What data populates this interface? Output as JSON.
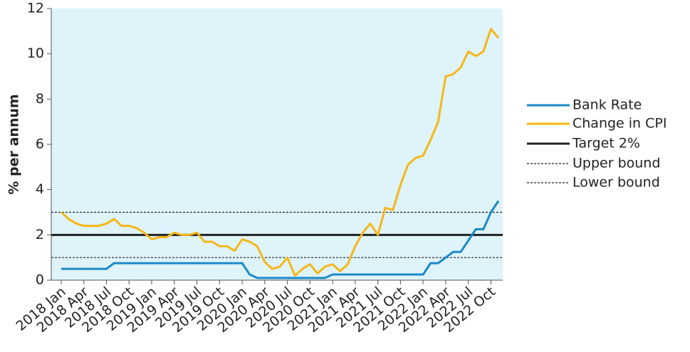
{
  "chart_data": {
    "type": "line",
    "y_label": "% per annum",
    "categories": [
      "2018 Jan",
      null,
      null,
      "2018 Apr",
      null,
      null,
      "2018 Jul",
      null,
      null,
      "2018 Oct",
      null,
      null,
      "2019 Jan",
      null,
      null,
      "2019 Apr",
      null,
      null,
      "2019 Jul",
      null,
      null,
      "2019 Oct",
      null,
      null,
      "2020 Jan",
      null,
      null,
      "2020 Apr",
      null,
      null,
      "2020 Jul",
      null,
      null,
      "2020 Oct",
      null,
      null,
      "2021 Jan",
      null,
      null,
      "2021 Apr",
      null,
      null,
      "2021 Jul",
      null,
      null,
      "2021 Oct",
      null,
      null,
      "2022 Jan",
      null,
      null,
      "2022 Apr",
      null,
      null,
      "2022 Jul",
      null,
      null,
      "2022 Oct",
      null
    ],
    "series": [
      {
        "name": "Bank Rate",
        "color": "#1a8ac6",
        "values": [
          0.5,
          0.5,
          0.5,
          0.5,
          0.5,
          0.5,
          0.5,
          0.75,
          0.75,
          0.75,
          0.75,
          0.75,
          0.75,
          0.75,
          0.75,
          0.75,
          0.75,
          0.75,
          0.75,
          0.75,
          0.75,
          0.75,
          0.75,
          0.75,
          0.75,
          0.25,
          0.1,
          0.1,
          0.1,
          0.1,
          0.1,
          0.1,
          0.1,
          0.1,
          0.1,
          0.1,
          0.25,
          0.25,
          0.25,
          0.25,
          0.25,
          0.25,
          0.25,
          0.25,
          0.25,
          0.25,
          0.25,
          0.25,
          0.25,
          0.75,
          0.75,
          1.0,
          1.25,
          1.25,
          1.75,
          2.25,
          2.25,
          3.0,
          3.5
        ]
      },
      {
        "name": "Change in CPI",
        "color": "#f5b716",
        "values": [
          3.0,
          2.7,
          2.5,
          2.4,
          2.4,
          2.4,
          2.5,
          2.7,
          2.4,
          2.4,
          2.3,
          2.1,
          1.8,
          1.9,
          1.9,
          2.1,
          2.0,
          2.0,
          2.1,
          1.7,
          1.7,
          1.5,
          1.5,
          1.3,
          1.8,
          1.7,
          1.5,
          0.8,
          0.5,
          0.6,
          1.0,
          0.2,
          0.5,
          0.7,
          0.3,
          0.6,
          0.7,
          0.4,
          0.7,
          1.5,
          2.1,
          2.5,
          2.0,
          3.2,
          3.1,
          4.2,
          5.1,
          5.4,
          5.5,
          6.2,
          7.0,
          9.0,
          9.1,
          9.4,
          10.1,
          9.9,
          10.1,
          11.1,
          10.7
        ]
      }
    ],
    "reference_lines": [
      {
        "name": "Target 2%",
        "value": 2,
        "color": "#222222",
        "dashed": false
      },
      {
        "name": "Upper bound",
        "value": 3,
        "color": "#222222",
        "dashed": true
      },
      {
        "name": "Lower bound",
        "value": 1,
        "color": "#222222",
        "dashed": true
      }
    ],
    "ylim": [
      0,
      12
    ],
    "yticks": [
      0,
      2,
      4,
      6,
      8,
      10,
      12
    ],
    "background": "#dff3fa"
  }
}
